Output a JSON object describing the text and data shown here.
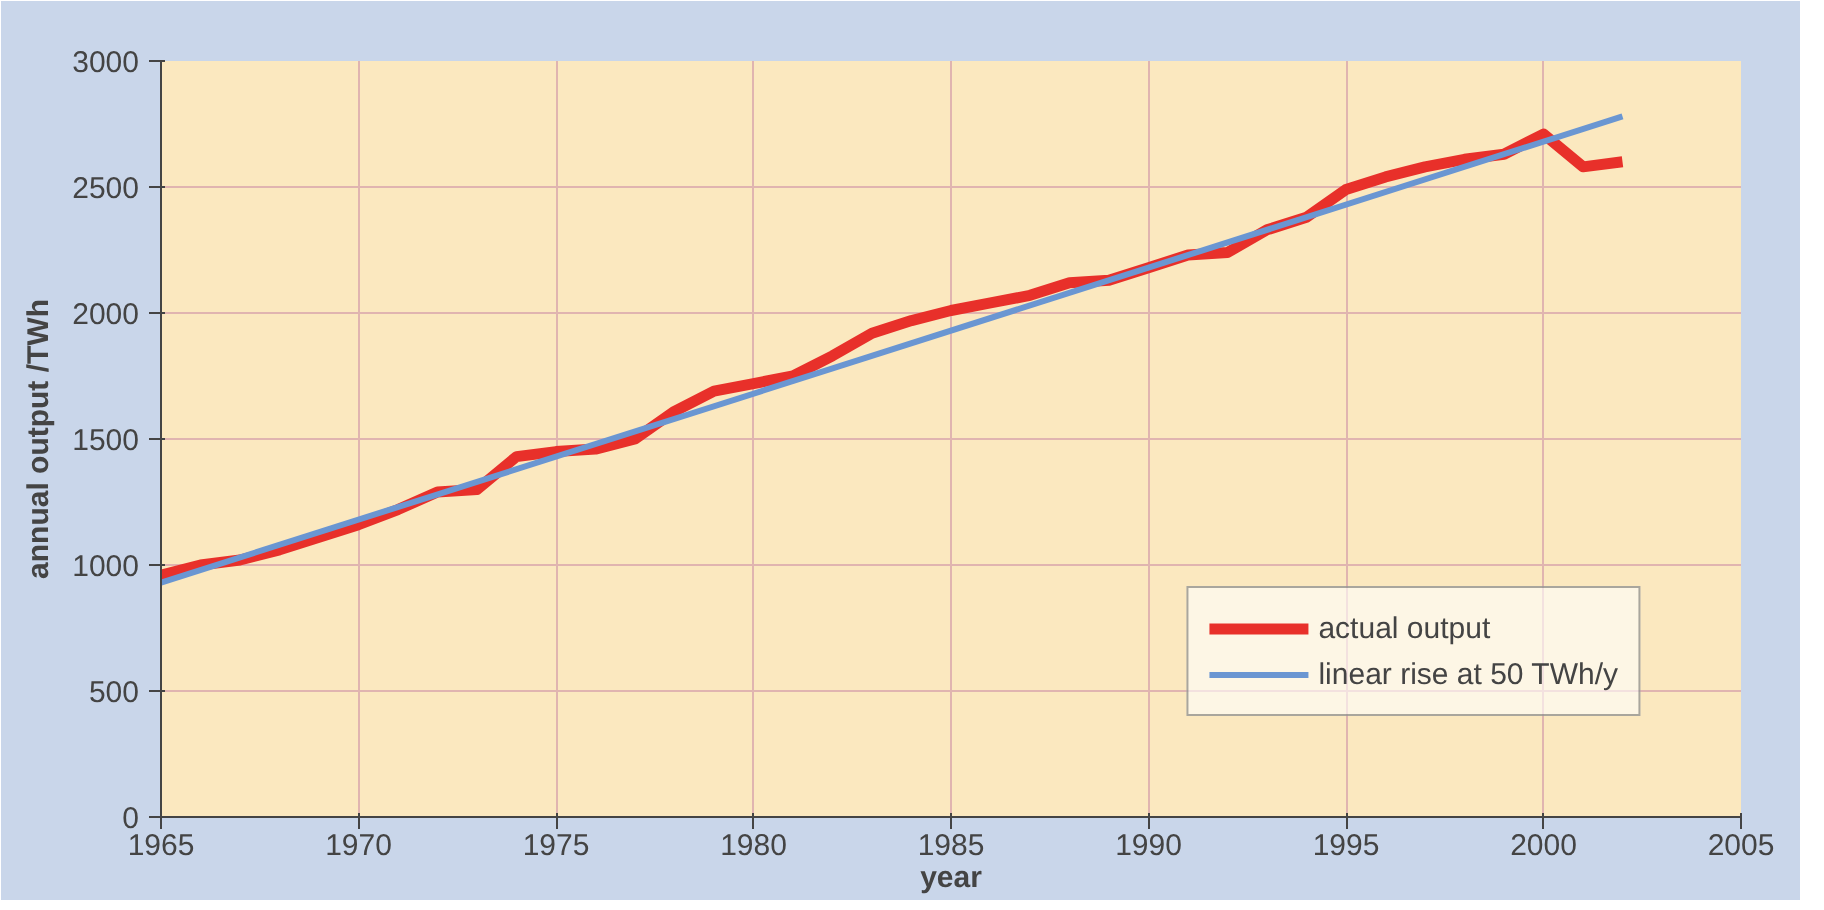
{
  "chart_data": {
    "type": "line",
    "xlabel": "year",
    "ylabel": "annual output /TWh",
    "xlim": [
      1965,
      2005
    ],
    "xticks": [
      1965,
      1970,
      1975,
      1980,
      1985,
      1990,
      1995,
      2000,
      2005
    ],
    "ylim": [
      0,
      3000
    ],
    "yticks": [
      0,
      500,
      1000,
      1500,
      2000,
      2500,
      3000
    ],
    "grid": true,
    "legend": "bottom right",
    "line_style": "solid",
    "series": [
      {
        "name": "actual output",
        "color": "#e8302a",
        "x": [
          1965,
          1966,
          1967,
          1968,
          1969,
          1970,
          1971,
          1972,
          1973,
          1974,
          1975,
          1976,
          1977,
          1978,
          1979,
          1980,
          1981,
          1982,
          1983,
          1984,
          1985,
          1986,
          1987,
          1988,
          1989,
          1990,
          1991,
          1992,
          1993,
          1994,
          1995,
          1996,
          1997,
          1998,
          1999,
          2000,
          2001,
          2002
        ],
        "values": [
          960,
          1000,
          1020,
          1060,
          1110,
          1160,
          1220,
          1290,
          1300,
          1430,
          1450,
          1460,
          1500,
          1610,
          1690,
          1720,
          1750,
          1830,
          1920,
          1970,
          2010,
          2040,
          2070,
          2120,
          2130,
          2180,
          2230,
          2240,
          2330,
          2380,
          2490,
          2540,
          2580,
          2610,
          2630,
          2710,
          2580,
          2600
        ]
      },
      {
        "name": "linear rise at 50 TWh/y",
        "color": "#6a96d2",
        "x": [
          1965,
          2002
        ],
        "values": [
          930,
          2780
        ]
      }
    ]
  }
}
